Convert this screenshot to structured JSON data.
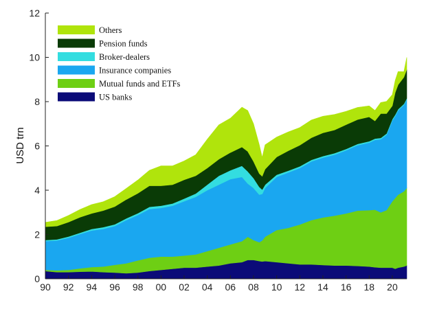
{
  "chart_data": {
    "type": "area",
    "stacked": true,
    "ylabel": "USD trn",
    "xlabel": "",
    "ylim": [
      0,
      12
    ],
    "yticks": [
      0,
      2,
      4,
      6,
      8,
      10,
      12
    ],
    "xlim": [
      1990,
      2021.25
    ],
    "xtick_values": [
      1990,
      1992,
      1994,
      1996,
      1998,
      2000,
      2002,
      2004,
      2006,
      2008,
      2010,
      2012,
      2014,
      2016,
      2018,
      2020
    ],
    "xtick_labels": [
      "90",
      "92",
      "94",
      "96",
      "98",
      "00",
      "02",
      "04",
      "06",
      "08",
      "10",
      "12",
      "14",
      "16",
      "18",
      "20"
    ],
    "legend_position": "top-left",
    "legend_order": [
      "Others",
      "Pension funds",
      "Broker-dealers",
      "Insurance companies",
      "Mutual funds and ETFs",
      "US banks"
    ],
    "x": [
      1990,
      1991,
      1992,
      1993,
      1994,
      1995,
      1996,
      1997,
      1998,
      1999,
      2000,
      2001,
      2002,
      2003,
      2004,
      2005,
      2006,
      2007,
      2007.5,
      2008,
      2008.5,
      2008.75,
      2009,
      2010,
      2011,
      2012,
      2013,
      2014,
      2015,
      2016,
      2017,
      2018,
      2018.5,
      2019,
      2019.5,
      2020,
      2020.25,
      2020.5,
      2021,
      2021.25
    ],
    "series": [
      {
        "name": "US banks",
        "color": "#0b0b78",
        "values": [
          0.35,
          0.3,
          0.3,
          0.32,
          0.33,
          0.3,
          0.28,
          0.25,
          0.28,
          0.35,
          0.4,
          0.45,
          0.5,
          0.5,
          0.55,
          0.6,
          0.7,
          0.75,
          0.85,
          0.85,
          0.8,
          0.78,
          0.8,
          0.75,
          0.7,
          0.65,
          0.65,
          0.62,
          0.6,
          0.6,
          0.58,
          0.55,
          0.52,
          0.5,
          0.5,
          0.5,
          0.45,
          0.5,
          0.55,
          0.6
        ]
      },
      {
        "name": "Mutual funds and ETFs",
        "color": "#6ecf14",
        "values": [
          0.05,
          0.08,
          0.1,
          0.15,
          0.2,
          0.25,
          0.35,
          0.45,
          0.55,
          0.6,
          0.6,
          0.55,
          0.55,
          0.6,
          0.7,
          0.8,
          0.85,
          0.95,
          1.05,
          0.9,
          0.85,
          0.95,
          1.1,
          1.45,
          1.6,
          1.8,
          2.0,
          2.15,
          2.25,
          2.35,
          2.5,
          2.55,
          2.6,
          2.5,
          2.6,
          3.0,
          3.2,
          3.3,
          3.4,
          3.5
        ]
      },
      {
        "name": "Insurance companies",
        "color": "#1aa7f0",
        "values": [
          1.3,
          1.35,
          1.45,
          1.55,
          1.65,
          1.7,
          1.75,
          1.95,
          2.05,
          2.2,
          2.2,
          2.3,
          2.45,
          2.6,
          2.75,
          2.85,
          2.95,
          2.9,
          2.4,
          2.35,
          2.15,
          2.1,
          2.2,
          2.4,
          2.5,
          2.55,
          2.65,
          2.7,
          2.75,
          2.85,
          2.95,
          3.05,
          3.15,
          3.3,
          3.4,
          3.65,
          3.7,
          3.8,
          3.9,
          4.0
        ]
      },
      {
        "name": "Broker-dealers",
        "color": "#33dde0",
        "values": [
          0.05,
          0.05,
          0.06,
          0.06,
          0.07,
          0.08,
          0.08,
          0.08,
          0.08,
          0.1,
          0.1,
          0.1,
          0.12,
          0.15,
          0.25,
          0.4,
          0.4,
          0.5,
          0.55,
          0.45,
          0.35,
          0.2,
          0.15,
          0.1,
          0.08,
          0.08,
          0.07,
          0.07,
          0.07,
          0.06,
          0.06,
          0.06,
          0.06,
          0.06,
          0.06,
          0.06,
          0.06,
          0.06,
          0.05,
          0.05
        ]
      },
      {
        "name": "Pension funds",
        "color": "#0a3b06",
        "values": [
          0.6,
          0.6,
          0.65,
          0.7,
          0.7,
          0.75,
          0.8,
          0.85,
          0.9,
          0.95,
          0.9,
          0.85,
          0.85,
          0.8,
          0.75,
          0.75,
          0.8,
          0.85,
          0.9,
          0.75,
          0.6,
          0.6,
          0.7,
          0.8,
          0.9,
          0.95,
          1.0,
          1.05,
          1.05,
          1.1,
          1.1,
          1.1,
          0.8,
          1.1,
          0.9,
          0.6,
          1.0,
          1.1,
          1.2,
          1.3
        ]
      },
      {
        "name": "Others",
        "color": "#b0e40c",
        "values": [
          0.2,
          0.25,
          0.3,
          0.35,
          0.4,
          0.4,
          0.45,
          0.5,
          0.6,
          0.7,
          0.9,
          0.85,
          0.85,
          0.95,
          1.3,
          1.55,
          1.55,
          1.8,
          1.85,
          1.7,
          1.3,
          0.85,
          1.1,
          0.9,
          0.85,
          0.8,
          0.8,
          0.75,
          0.7,
          0.6,
          0.55,
          0.5,
          0.47,
          0.5,
          0.55,
          0.5,
          0.55,
          0.6,
          0.25,
          0.55
        ]
      }
    ]
  }
}
